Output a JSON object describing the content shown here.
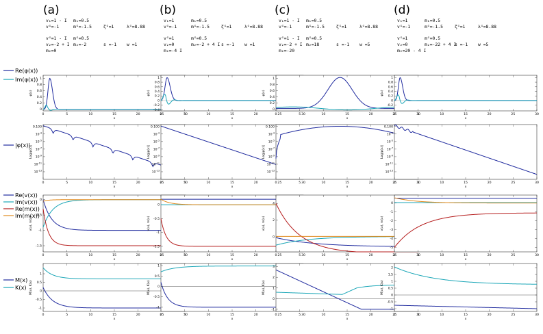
{
  "figure": {
    "legends": [
      [
        {
          "name": "Re(φ(x))",
          "color": "#1f2a9e"
        },
        {
          "name": "Im(φ(x))",
          "color": "#1aa6b7"
        }
      ],
      [
        {
          "name": "|φ(x)|",
          "color": "#1f2a9e"
        }
      ],
      [
        {
          "name": "Re(v(x))",
          "color": "#1f2a9e"
        },
        {
          "name": "Im(v(x))",
          "color": "#1aa6b7"
        },
        {
          "name": "Re(m(x))",
          "color": "#b51c1c"
        },
        {
          "name": "Im(m(x))",
          "color": "#e08a1e"
        }
      ],
      [
        {
          "name": "M(x)",
          "color": "#1f2a9e"
        },
        {
          "name": "K(x)",
          "color": "#1aa6b7"
        }
      ]
    ],
    "panels": [
      {
        "label": "(a)",
        "params": [
          {
            "row": 0,
            "items": [
              "v₁=1 - I",
              "m₁=0.5"
            ]
          },
          {
            "row": 1,
            "items": [
              "vᴳ=-1",
              "mᴳ=-1.5",
              "ζᴳ=1",
              "λᴳ=8.88"
            ]
          },
          {
            "row": 2,
            "items": [
              "vᴳ=1 - I",
              "mᴳ=0.5"
            ]
          },
          {
            "row": 3,
            "items": [
              "v₂=-2 + I",
              "m₂=-2",
              "s =-1",
              "w =1"
            ]
          },
          {
            "row": 4,
            "items": [
              "m₂=0"
            ]
          }
        ]
      },
      {
        "label": "(b)",
        "params": [
          {
            "row": 0,
            "items": [
              "v₁=1",
              "m₁=0.5"
            ]
          },
          {
            "row": 1,
            "items": [
              "vᴳ=-1",
              "mᴳ=-1.5",
              "ζᴳ=1",
              "λᴳ=8.88"
            ]
          },
          {
            "row": 2,
            "items": [
              "vᴳ=1",
              "mᴳ=0.5"
            ]
          },
          {
            "row": 3,
            "items": [
              "v₂=0",
              "m₂=-2 + 4 I",
              "s =-1",
              "w =1"
            ]
          },
          {
            "row": 4,
            "items": [
              "m₂=-4 I"
            ]
          }
        ]
      },
      {
        "label": "(c)",
        "params": [
          {
            "row": 0,
            "items": [
              "v₁=1 - I",
              "m₁=0.5"
            ]
          },
          {
            "row": 1,
            "items": [
              "vᴳ=-1",
              "mᴳ=-1.5",
              "ζᴳ=1",
              "λᴳ=8.88"
            ]
          },
          {
            "row": 2,
            "items": [
              "vᴳ=1 - I",
              "mᴳ=0.5"
            ]
          },
          {
            "row": 3,
            "items": [
              "v₂=-2 + I",
              "m₂=18",
              "s =-1",
              "w =5"
            ]
          },
          {
            "row": 4,
            "items": [
              "m₂=-20"
            ]
          }
        ]
      },
      {
        "label": "(d)",
        "params": [
          {
            "row": 0,
            "items": [
              "v₁=1",
              "m₁=0.5"
            ]
          },
          {
            "row": 1,
            "items": [
              "vᴳ=-1",
              "mᴳ=-1.5",
              "ζᴳ=1",
              "λᴳ=8.88"
            ]
          },
          {
            "row": 2,
            "items": [
              "vᴳ=1",
              "mᴳ=0.5"
            ]
          },
          {
            "row": 3,
            "items": [
              "v₂=0",
              "m₂=-22 + 4 I",
              "s =-1",
              "w =5"
            ]
          },
          {
            "row": 4,
            "items": [
              "m₂=20 - 4 I"
            ]
          }
        ]
      }
    ]
  },
  "chart_data": {
    "type": "line",
    "layout": "4 columns (a)-(d) x 4 rows of line plots",
    "x": {
      "label": "x",
      "range": [
        0,
        30
      ],
      "ticks": [
        0,
        5,
        10,
        15,
        20,
        25,
        30
      ]
    },
    "rows": [
      {
        "name": "phi",
        "ylabel": "φ(x)",
        "series": [
          "Re(φ(x))",
          "Im(φ(x))"
        ]
      },
      {
        "name": "absphi",
        "ylabel": "Log|φ(x)|",
        "scale": "log",
        "series": [
          "|φ(x)|"
        ]
      },
      {
        "name": "vm",
        "ylabel": "v(x), m(x)",
        "series": [
          "Re(v(x))",
          "Im(v(x))",
          "Re(m(x))",
          "Im(m(x))"
        ]
      },
      {
        "name": "MK",
        "ylabel": "M(x), K(x)",
        "series": [
          "M(x)",
          "K(x)"
        ]
      }
    ],
    "columns": [
      {
        "panel": "(a)",
        "phi": {
          "ylim": [
            -0.05,
            1.1
          ],
          "yticks": [
            0,
            0.2,
            0.4,
            0.6,
            0.8,
            1.0
          ],
          "re": {
            "type": "bump",
            "c": 1.4,
            "amp": 1.0,
            "w": 0.8
          },
          "im": {
            "type": "osc",
            "c": 0.7,
            "amp": 0.16,
            "decay": 1.6
          }
        },
        "absphi": {
          "ylim": [
            -15,
            -0.5
          ],
          "ytickexp": [
            -1,
            -3,
            -5,
            -7,
            -9,
            -11,
            -13
          ],
          "curve": {
            "type": "scallop",
            "start": -0.8,
            "slope": -0.42,
            "period": 4.2,
            "dip": 1.2
          }
        },
        "vm": {
          "ylim": [
            -1.7,
            0.15
          ],
          "yticks": [
            0,
            -0.5,
            -1.0,
            -1.5
          ],
          "series": [
            {
              "name": "Re(v(x))",
              "from": 0,
              "to": -1,
              "k": 0.55
            },
            {
              "name": "Im(v(x))",
              "from": -0.9,
              "to": 0,
              "k": 0.5
            },
            {
              "name": "Re(m(x))",
              "from": -0.3,
              "to": -1.5,
              "k": 0.9
            },
            {
              "name": "Im(m(x))",
              "from": -0.05,
              "to": 0,
              "k": 0.9
            }
          ]
        },
        "MK": {
          "ylim": [
            -1.2,
            1.6
          ],
          "yticks": [
            -1.0,
            -0.5,
            0,
            0.5,
            1.0
          ],
          "zeroline": 0,
          "series": [
            {
              "name": "M(x)",
              "from": 0.2,
              "to": -1.0,
              "k": 0.5
            },
            {
              "name": "K(x)",
              "from": 1.35,
              "to": 0.7,
              "k": 0.5
            }
          ]
        }
      },
      {
        "panel": "(b)",
        "phi": {
          "ylim": [
            -0.45,
            1.1
          ],
          "yticks": [
            -0.4,
            -0.2,
            0,
            0.2,
            0.4,
            0.6,
            0.8,
            1.0
          ],
          "re": {
            "type": "bump",
            "c": 1.3,
            "amp": 1.0,
            "w": 0.9
          },
          "im": {
            "type": "osc",
            "c": 1.0,
            "amp": 0.4,
            "decay": 1.3
          }
        },
        "absphi": {
          "ylim": [
            -15,
            -0.5
          ],
          "ytickexp": [
            -1,
            -3,
            -5,
            -7,
            -9,
            -11,
            -13
          ],
          "curve": {
            "type": "smooth",
            "start": -0.9,
            "slope": -0.42
          }
        },
        "vm": {
          "ylim": [
            -1.7,
            0.35
          ],
          "yticks": [
            0,
            -0.5,
            -1.0,
            -1.5
          ],
          "series": [
            {
              "name": "Re(v(x))",
              "from": 0.2,
              "to": 0.2,
              "k": 0.5
            },
            {
              "name": "Im(v(x))",
              "from": 0,
              "to": 0,
              "k": 0.5
            },
            {
              "name": "Re(m(x))",
              "from": -0.5,
              "to": -1.5,
              "k": 0.9
            },
            {
              "name": "Im(m(x))",
              "from": 0.2,
              "to": 0,
              "k": 0.55
            }
          ]
        },
        "MK": {
          "ylim": [
            -1.2,
            1.1
          ],
          "yticks": [
            -1.0,
            -0.5,
            0,
            0.5,
            1.0
          ],
          "zeroline": 0,
          "series": [
            {
              "name": "M(x)",
              "from": 0.2,
              "to": -1.0,
              "k": 0.7
            },
            {
              "name": "K(x)",
              "from": 0.7,
              "to": 0.98,
              "k": 0.35
            }
          ]
        }
      },
      {
        "panel": "(c)",
        "phi": {
          "ylim": [
            -0.05,
            1.1
          ],
          "yticks": [
            0,
            0.2,
            0.4,
            0.6,
            0.8,
            1.0
          ],
          "re": {
            "type": "gauss",
            "c": 13.5,
            "amp": 1.0,
            "w": 3.6,
            "base": 0.03
          },
          "im": {
            "type": "wave",
            "c": 13,
            "amp": 0.05,
            "base": 0.03
          }
        },
        "absphi": {
          "ylim": [
            -15,
            -0.5
          ],
          "ytickexp": [
            -1,
            -3,
            -5,
            -7,
            -9,
            -11,
            -13
          ],
          "curve": {
            "type": "arch",
            "peak": -0.95,
            "c": 13.5,
            "edgeL": -9.5,
            "edgeR": -4.0
          }
        },
        "vm": {
          "ylim": [
            -1.8,
            5.0
          ],
          "yticks": [
            4,
            2,
            0,
            -2
          ],
          "series": [
            {
              "name": "Re(v(x))",
              "from": -0.1,
              "to": -1.2,
              "k": 0.12
            },
            {
              "name": "Im(v(x))",
              "from": -1.0,
              "to": 0.05,
              "k": 0.15
            },
            {
              "name": "Re(m(x))",
              "from": 4.0,
              "to": -2.0,
              "k": 0.2,
              "sig": 13
            },
            {
              "name": "Im(m(x))",
              "from": 0.05,
              "to": 0.05,
              "k": 0.5
            }
          ]
        },
        "MK": {
          "ylim": [
            -1.2,
            3.3
          ],
          "yticks": [
            3,
            2,
            1,
            0,
            -1
          ],
          "zeroline": 0,
          "series": [
            {
              "name": "M(x)",
              "from": 2.7,
              "to": -1.0,
              "k": 0.25,
              "lin": true
            },
            {
              "name": "K(x)",
              "from": 0.3,
              "to": 1.0,
              "k": 0.4,
              "dip": true
            }
          ]
        }
      },
      {
        "panel": "(d)",
        "phi": {
          "ylim": [
            -0.45,
            1.1
          ],
          "yticks": [
            -0.2,
            0,
            0.2,
            0.4,
            0.6,
            0.8,
            1.0
          ],
          "re": {
            "type": "bump",
            "c": 1.2,
            "amp": 1.0,
            "w": 0.75
          },
          "im": {
            "type": "osc",
            "c": 1.0,
            "amp": 0.35,
            "decay": 1.4
          }
        },
        "absphi": {
          "ylim": [
            -15,
            -0.5
          ],
          "ytickexp": [
            -1,
            -3,
            -5,
            -7,
            -9,
            -11,
            -13
          ],
          "curve": {
            "type": "wiggle",
            "start": -0.8,
            "slope": -0.43
          }
        },
        "vm": {
          "ylim": [
            -5.5,
            0.9
          ],
          "yticks": [
            0,
            -1,
            -2,
            -3,
            -4,
            -5
          ],
          "series": [
            {
              "name": "Re(v(x))",
              "from": 0.55,
              "to": 0.55,
              "k": 0.5
            },
            {
              "name": "Im(v(x))",
              "from": 0.05,
              "to": 0.05,
              "k": 0.5
            },
            {
              "name": "Re(m(x))",
              "from": -5.0,
              "to": -1.1,
              "k": 0.18
            },
            {
              "name": "Im(m(x))",
              "from": 0.6,
              "to": 0,
              "k": 0.22
            }
          ]
        },
        "MK": {
          "ylim": [
            -1.2,
            2.3
          ],
          "yticks": [
            2.0,
            1.5,
            1.0,
            0.5,
            0,
            -0.5,
            -1.0
          ],
          "zeroline": 0,
          "series": [
            {
              "name": "M(x)",
              "from": -0.75,
              "to": -1.0,
              "k": 0.06,
              "lin": true
            },
            {
              "name": "K(x)",
              "from": 2.05,
              "to": 0.75,
              "k": 0.12
            }
          ]
        }
      }
    ]
  }
}
